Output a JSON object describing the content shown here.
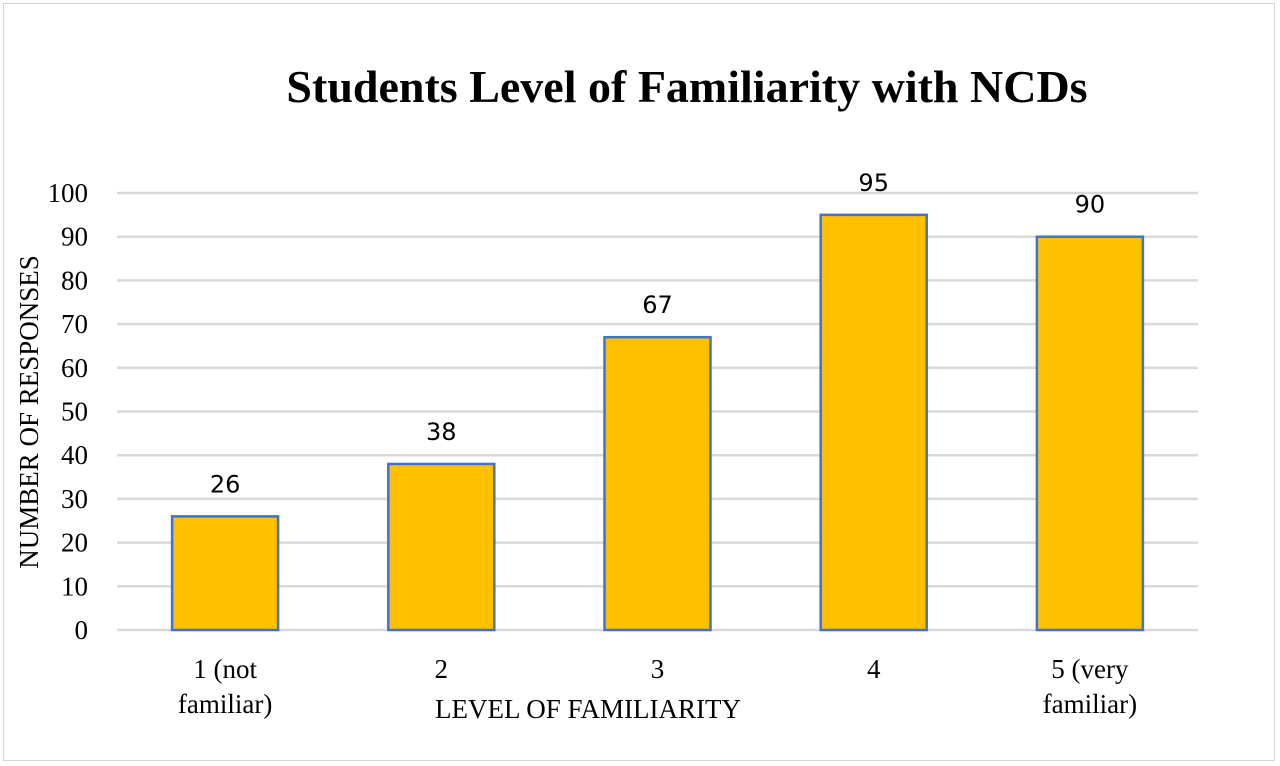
{
  "chart_data": {
    "type": "bar",
    "title": "Students Level of Familiarity with NCDs",
    "xlabel": "LEVEL OF FAMILIARITY",
    "ylabel": "NUMBER OF RESPONSES",
    "categories": [
      [
        "1 (not",
        "familiar)"
      ],
      [
        "2"
      ],
      [
        "3"
      ],
      [
        "4"
      ],
      [
        "5 (very",
        "familiar)"
      ]
    ],
    "values": [
      26,
      38,
      67,
      95,
      90
    ],
    "ylim": [
      0,
      100
    ],
    "yticks": [
      0,
      10,
      20,
      30,
      40,
      50,
      60,
      70,
      80,
      90,
      100
    ],
    "grid": true,
    "bar_color": "#FFC000",
    "bar_edge_color": "#4472C4"
  }
}
